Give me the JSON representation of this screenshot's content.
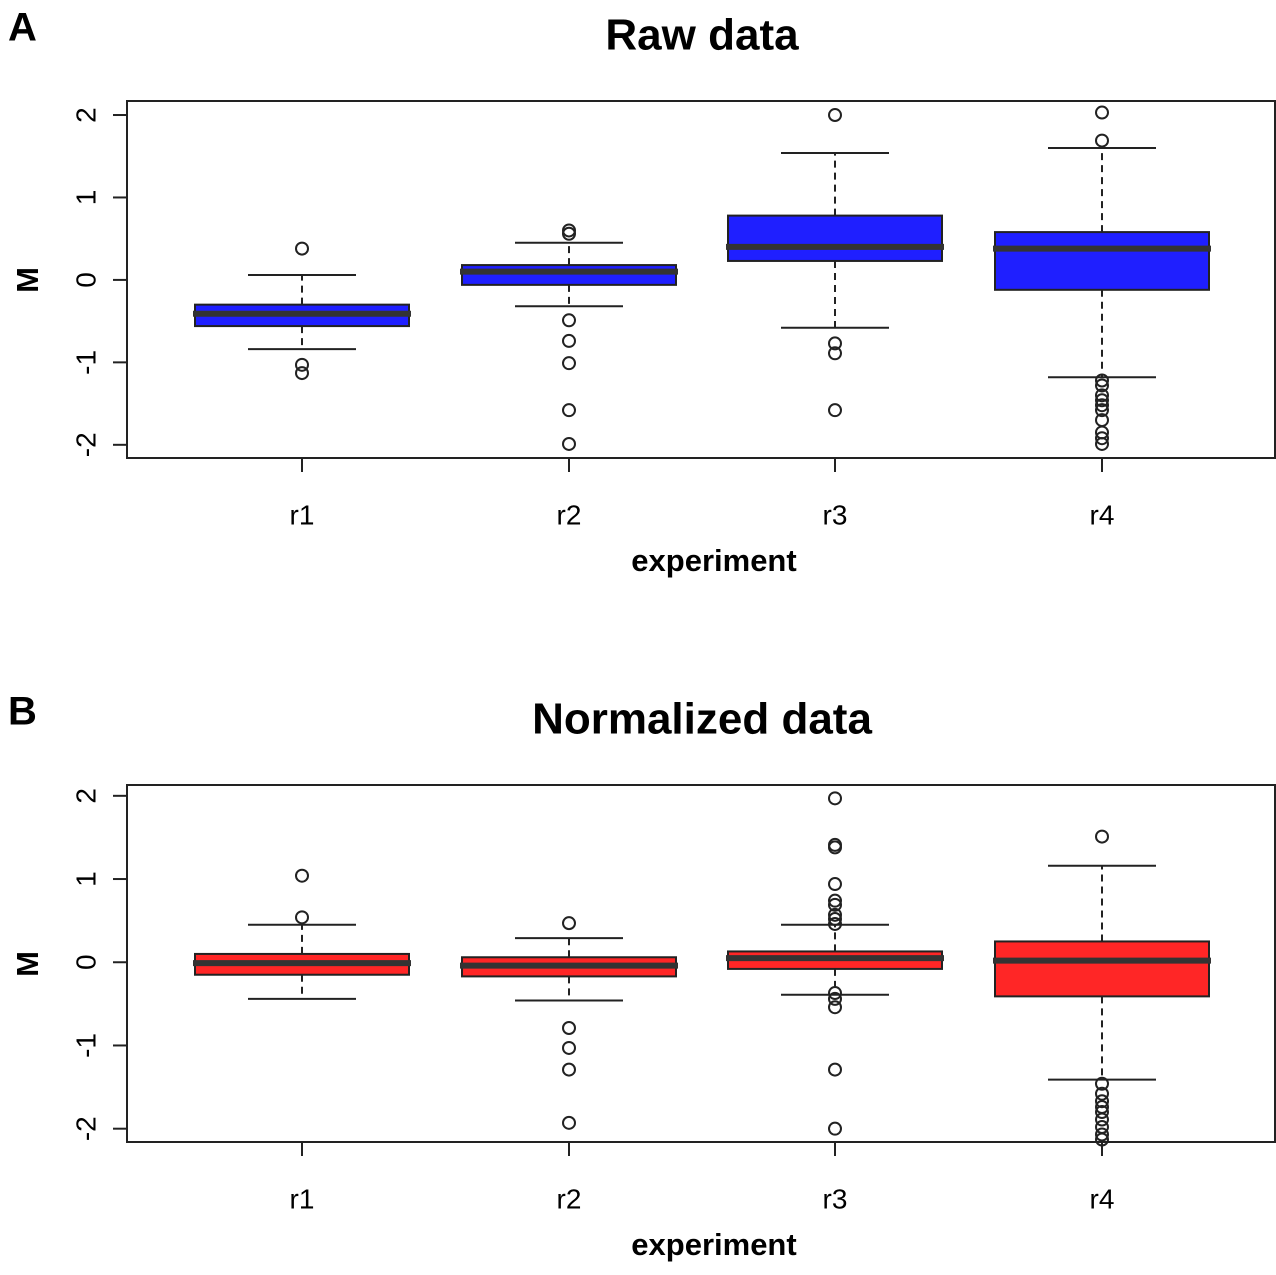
{
  "chart_data": [
    {
      "type": "boxplot",
      "panel_label": "A",
      "title": "Raw data",
      "x_label": "experiment",
      "y_label": "M",
      "categories": [
        "r1",
        "r2",
        "r3",
        "r4"
      ],
      "color": "#1f1fff",
      "ylim": [
        -2.16,
        2.17
      ],
      "yticks": [
        -2,
        -1,
        0,
        1,
        2
      ],
      "boxes": [
        {
          "whislo": -0.84,
          "q1": -0.56,
          "med": -0.41,
          "q3": -0.3,
          "whishi": 0.06,
          "fliers": [
            0.38,
            -1.03,
            -1.13
          ]
        },
        {
          "whislo": -0.32,
          "q1": -0.06,
          "med": 0.1,
          "q3": 0.18,
          "whishi": 0.45,
          "fliers": [
            0.6,
            0.56,
            -0.49,
            -0.74,
            -1.01,
            -1.58,
            -1.99
          ]
        },
        {
          "whislo": -0.58,
          "q1": 0.23,
          "med": 0.4,
          "q3": 0.78,
          "whishi": 1.54,
          "fliers": [
            2.0,
            -0.77,
            -0.89,
            -1.58
          ]
        },
        {
          "whislo": -1.18,
          "q1": -0.12,
          "med": 0.38,
          "q3": 0.58,
          "whishi": 1.6,
          "fliers": [
            2.03,
            1.69,
            -1.22,
            -1.28,
            -1.4,
            -1.46,
            -1.52,
            -1.58,
            -1.7,
            -1.85,
            -1.92,
            -1.99
          ]
        }
      ]
    },
    {
      "type": "boxplot",
      "panel_label": "B",
      "title": "Normalized data",
      "x_label": "experiment",
      "y_label": "M",
      "categories": [
        "r1",
        "r2",
        "r3",
        "r4"
      ],
      "color": "#ff2626",
      "ylim": [
        -2.16,
        2.13
      ],
      "yticks": [
        -2,
        -1,
        0,
        1,
        2
      ],
      "boxes": [
        {
          "whislo": -0.44,
          "q1": -0.15,
          "med": -0.01,
          "q3": 0.1,
          "whishi": 0.45,
          "fliers": [
            1.04,
            0.54
          ]
        },
        {
          "whislo": -0.46,
          "q1": -0.17,
          "med": -0.04,
          "q3": 0.06,
          "whishi": 0.29,
          "fliers": [
            0.47,
            -0.79,
            -1.03,
            -1.29,
            -1.93
          ]
        },
        {
          "whislo": -0.39,
          "q1": -0.08,
          "med": 0.05,
          "q3": 0.13,
          "whishi": 0.45,
          "fliers": [
            1.97,
            1.41,
            1.38,
            0.94,
            0.74,
            0.69,
            0.57,
            0.52,
            0.46,
            -0.37,
            -0.44,
            -0.54,
            -1.29,
            -2.0
          ]
        },
        {
          "whislo": -1.41,
          "q1": -0.41,
          "med": 0.02,
          "q3": 0.25,
          "whishi": 1.16,
          "fliers": [
            1.51,
            -1.46,
            -1.58,
            -1.67,
            -1.74,
            -1.8,
            -1.89,
            -1.98,
            -2.07,
            -2.13
          ]
        }
      ]
    }
  ]
}
